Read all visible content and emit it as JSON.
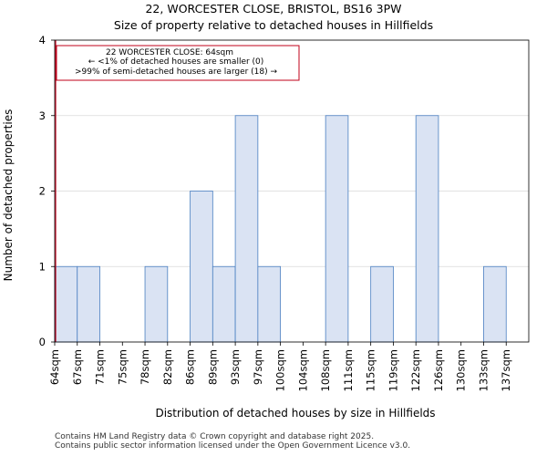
{
  "chart_data": {
    "type": "bar",
    "title": "22, WORCESTER CLOSE, BRISTOL, BS16 3PW",
    "subtitle": "Size of property relative to detached houses in Hillfields",
    "xlabel": "Distribution of detached houses by size in Hillfields",
    "ylabel": "Number of detached properties",
    "categories": [
      "64sqm",
      "67sqm",
      "71sqm",
      "75sqm",
      "78sqm",
      "82sqm",
      "86sqm",
      "89sqm",
      "93sqm",
      "97sqm",
      "100sqm",
      "104sqm",
      "108sqm",
      "111sqm",
      "115sqm",
      "119sqm",
      "122sqm",
      "126sqm",
      "130sqm",
      "133sqm",
      "137sqm"
    ],
    "values": [
      1,
      1,
      0,
      0,
      1,
      0,
      2,
      1,
      3,
      1,
      0,
      0,
      3,
      0,
      1,
      0,
      3,
      0,
      0,
      1,
      0
    ],
    "ylim": [
      0,
      4
    ],
    "yticks": [
      0,
      1,
      2,
      3,
      4
    ],
    "grid": true,
    "bar_color": "#dae3f3",
    "bar_edge_color": "#4a7fc1",
    "marker": {
      "value": 64,
      "color": "#c0001a"
    },
    "annotation": {
      "line1": "22 WORCESTER CLOSE: 64sqm",
      "line2": "← <1% of detached houses are smaller (0)",
      "line3": ">99% of semi-detached houses are larger (18) →"
    }
  },
  "footer": {
    "line1": "Contains HM Land Registry data © Crown copyright and database right 2025.",
    "line2": "Contains public sector information licensed under the Open Government Licence v3.0."
  }
}
